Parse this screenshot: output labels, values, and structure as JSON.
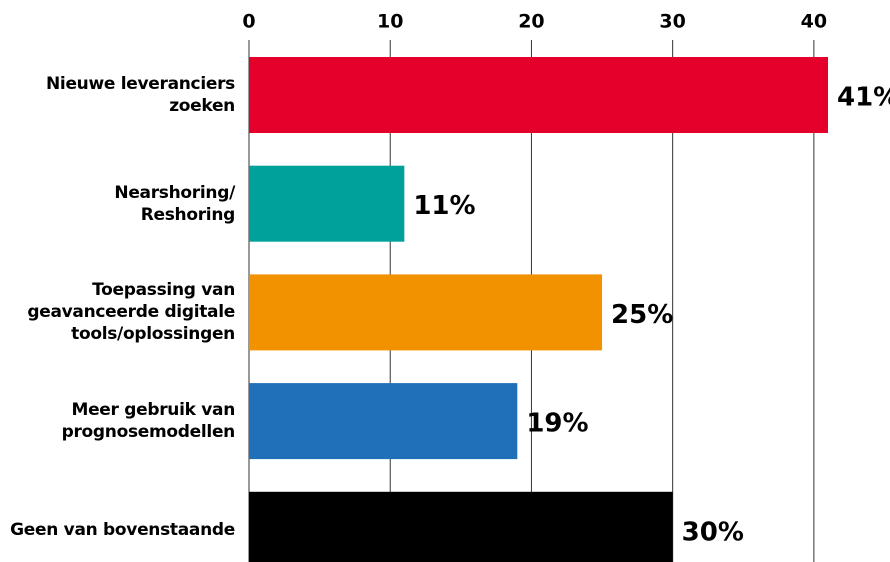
{
  "chart_data": {
    "type": "bar",
    "orientation": "horizontal",
    "categories": [
      "Nieuwe leveranciers\nzoeken",
      "Nearshoring/\nReshoring",
      "Toepassing van\ngeavanceerde digitale\ntools/oplossingen",
      "Meer gebruik van\nprognosemodellen",
      "Geen van bovenstaande"
    ],
    "values": [
      41,
      11,
      25,
      19,
      30
    ],
    "value_labels": [
      "41%",
      "11%",
      "25%",
      "19%",
      "30%"
    ],
    "colors": [
      "#e4002b",
      "#00a19a",
      "#f39200",
      "#1f70b8",
      "#000000"
    ],
    "xlim": [
      0,
      41
    ],
    "xticks": [
      0,
      10,
      20,
      30,
      40
    ],
    "grid": true
  }
}
